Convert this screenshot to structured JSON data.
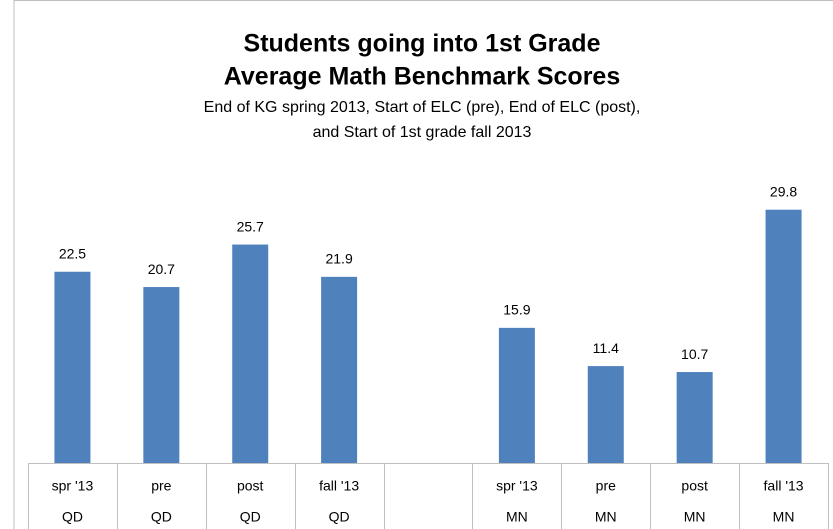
{
  "chart_data": {
    "type": "bar",
    "title": [
      "Students going into 1st Grade",
      "Average Math Benchmark Scores"
    ],
    "subtitle": [
      "End of KG spring 2013, Start of ELC (pre), End of ELC (post),",
      "and Start of 1st grade fall 2013"
    ],
    "categories": [
      "spr '13",
      "pre",
      "post",
      "fall '13",
      null,
      "spr '13",
      "pre",
      "post",
      "fall '13"
    ],
    "groups": [
      "QD",
      "QD",
      "QD",
      "QD",
      null,
      "MN",
      "MN",
      "MN",
      "MN"
    ],
    "values": [
      22.5,
      20.7,
      25.7,
      21.9,
      null,
      15.9,
      11.4,
      10.7,
      29.8
    ],
    "color": "#4f81bd",
    "ylim": [
      0,
      30
    ]
  }
}
